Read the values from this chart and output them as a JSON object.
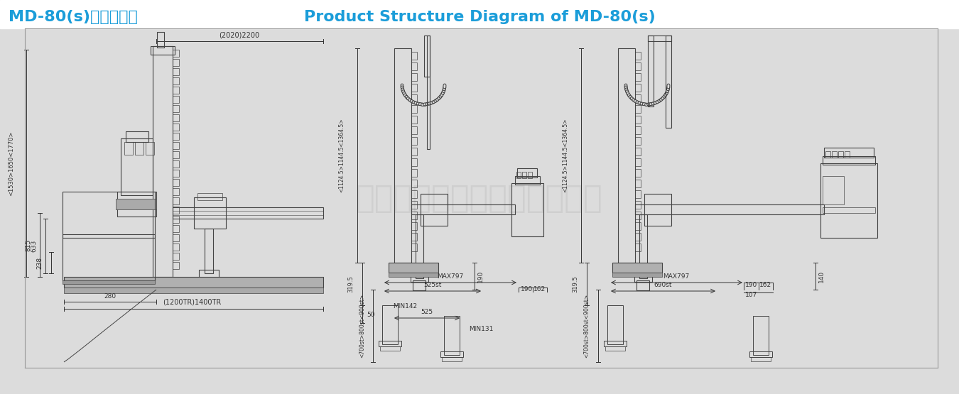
{
  "title_cn": "MD-80(s)产品结构图",
  "title_en": "Product Structure Diagram of MD-80(s)",
  "title_color": "#1B9DD9",
  "bg_color": "#DCDCDC",
  "header_bg": "#FFFFFF",
  "line_color": "#444444",
  "dim_color": "#333333",
  "watermark_text": "广东拓斯达科技股份有限公司",
  "dim_left": {
    "top_width": "(2020)2200",
    "height1": "<1530>1650<1770>",
    "h815": "815",
    "h633": "633",
    "h238": "238",
    "w280": "280",
    "w1400": "(1200TR)1400TR"
  },
  "dim_mid": {
    "vert": "<1124.5>1144.5<1364.5>",
    "v319": "319.5",
    "v50": "50",
    "v190": "190",
    "max797": "MAX797",
    "h525st": "525st",
    "h525": "525",
    "range": "<700st>800st<900st>",
    "min142": "MIN142",
    "min131": "MIN131",
    "r190": "190",
    "r162": "162"
  },
  "dim_right": {
    "vert": "<1124.5>1144.5<1364.5>",
    "v319": "319.5",
    "v140": "140",
    "max797": "MAX797",
    "h690st": "690st",
    "range": "<700st>800st<900st>",
    "r190": "190",
    "r162": "162",
    "r107": "107"
  }
}
